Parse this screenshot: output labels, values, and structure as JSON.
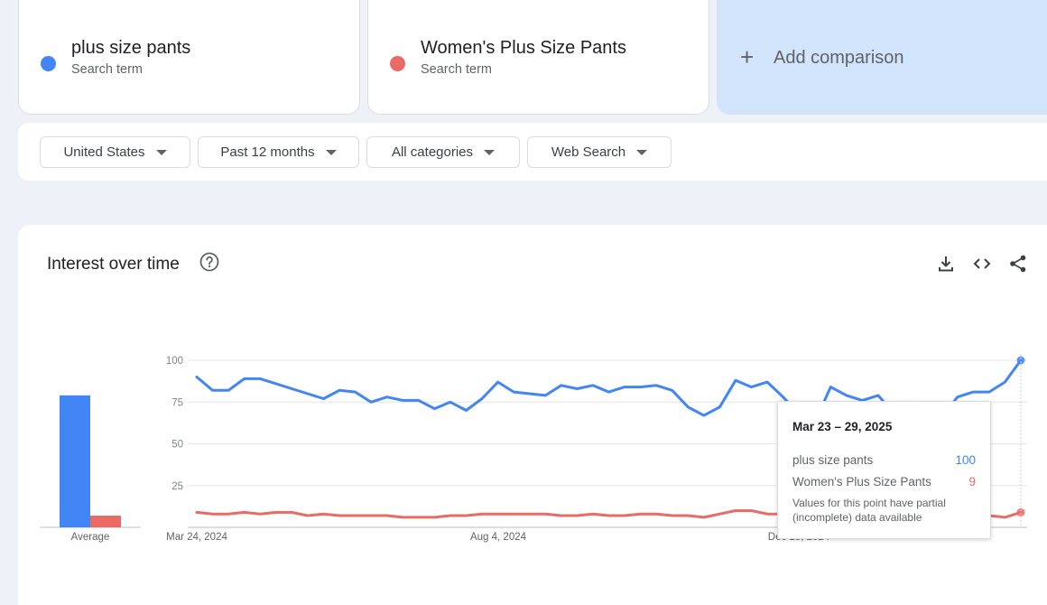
{
  "terms": [
    {
      "name": "plus size pants",
      "type": "Search term",
      "color": "#4285f4"
    },
    {
      "name": "Women's Plus Size Pants",
      "type": "Search term",
      "color": "#ea6a66"
    }
  ],
  "add_comparison": {
    "label": "Add comparison",
    "icon": "plus-icon"
  },
  "filters": {
    "region": "United States",
    "period": "Past 12 months",
    "category": "All categories",
    "source": "Web Search"
  },
  "panel": {
    "title": "Interest over time",
    "icons": [
      "help-icon",
      "download-icon",
      "embed-icon",
      "share-icon"
    ]
  },
  "tooltip": {
    "date": "Mar 23 – 29, 2025",
    "rows": [
      {
        "name": "plus size pants",
        "value": "100",
        "color": "#4285f4"
      },
      {
        "name": "Women's Plus Size Pants",
        "value": "9",
        "color": "#ea6a66"
      }
    ],
    "note": "Values for this point have partial (incomplete) data available"
  },
  "chart_data": {
    "type": "line",
    "yticks": [
      25,
      50,
      75,
      100
    ],
    "ylim": [
      0,
      100
    ],
    "x_tick_labels": [
      "Mar 24, 2024",
      "Aug 4, 2024",
      "Dec 15, 2024"
    ],
    "average": {
      "label": "Average",
      "values": [
        79,
        7
      ]
    },
    "series": [
      {
        "name": "plus size pants",
        "color": "#4285f4",
        "values": [
          90,
          82,
          82,
          89,
          89,
          86,
          83,
          80,
          77,
          82,
          81,
          75,
          78,
          76,
          76,
          71,
          75,
          70,
          77,
          87,
          81,
          80,
          79,
          85,
          83,
          85,
          81,
          84,
          84,
          85,
          82,
          72,
          67,
          72,
          88,
          84,
          87,
          78,
          68,
          63,
          84,
          79,
          76,
          79,
          68,
          75,
          66,
          66,
          78,
          81,
          81,
          87,
          100
        ]
      },
      {
        "name": "Women's Plus Size Pants",
        "color": "#ea6a66",
        "values": [
          9,
          8,
          8,
          9,
          8,
          9,
          9,
          7,
          8,
          7,
          7,
          7,
          7,
          6,
          6,
          6,
          7,
          7,
          8,
          8,
          8,
          8,
          8,
          7,
          7,
          8,
          7,
          7,
          8,
          8,
          7,
          7,
          6,
          8,
          10,
          10,
          8,
          8,
          7,
          7,
          7,
          6,
          6,
          6,
          7,
          6,
          6,
          5,
          6,
          7,
          7,
          6,
          9
        ]
      }
    ]
  }
}
